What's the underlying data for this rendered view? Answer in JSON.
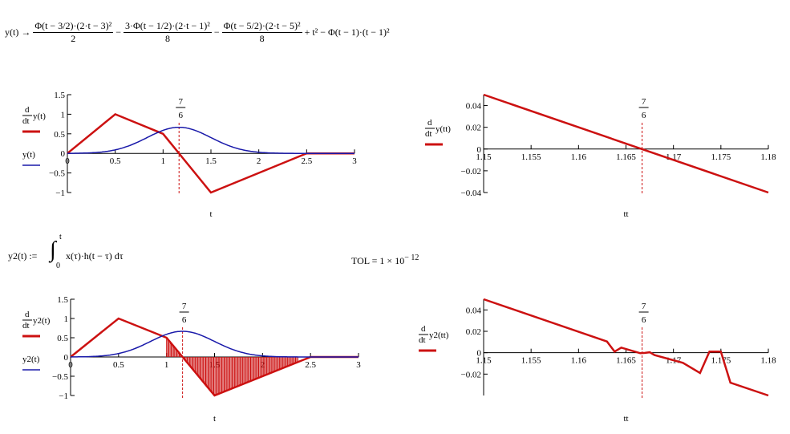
{
  "eq1": {
    "lhs": "y(t)",
    "arrow": "→",
    "term1_num": "Φ(t − 3/2)·(2·t − 3)²",
    "term1_den": "2",
    "minus1": "−",
    "term2_num": "3·Φ(t − 1/2)·(2·t − 1)²",
    "term2_den": "8",
    "minus2": "−",
    "term3_num": "Φ(t − 5/2)·(2·t − 5)²",
    "term3_den": "8",
    "tail": "+ t² − Φ(t − 1)·(t − 1)²"
  },
  "eq2": {
    "lhs": "y2(t) :=",
    "upper": "t",
    "lower": "0",
    "integrand": "x(τ)·h(t − τ) dτ"
  },
  "tol": {
    "label": "TOL = 1 × 10",
    "exp": "− 12"
  },
  "colors": {
    "red": "#cc1111",
    "blue": "#1a1aaa",
    "axis": "#000000"
  },
  "marker": {
    "num": "7",
    "den": "6"
  },
  "chart_data": [
    {
      "id": "plot1",
      "type": "line",
      "xlabel": "t",
      "xlim": [
        0,
        3
      ],
      "ylim": [
        -1,
        1.5
      ],
      "xticks": [
        "0",
        "0.5",
        "1",
        "1.5",
        "2",
        "2.5",
        "3"
      ],
      "yticks": [
        "1.5",
        "1",
        "0.5",
        "0",
        "−0.5",
        "−1"
      ],
      "legend": [
        {
          "name": "d/dt y(t)",
          "color": "#cc1111"
        },
        {
          "name": "y(t)",
          "color": "#1a1aaa"
        }
      ],
      "series": [
        {
          "name": "d/dt y(t)",
          "kind": "piecewise",
          "x": [
            0,
            0.5,
            1.0,
            1.5,
            2.5,
            3.0
          ],
          "y": [
            0,
            1.0,
            0.5,
            -1.0,
            0,
            0
          ]
        },
        {
          "name": "y(t)",
          "kind": "smooth_bump"
        }
      ],
      "marker_x": 1.1667
    },
    {
      "id": "plot2",
      "type": "line",
      "xlabel": "tt",
      "xlim": [
        1.15,
        1.18
      ],
      "ylim": [
        -0.04,
        0.05
      ],
      "xticks": [
        "1.15",
        "1.155",
        "1.16",
        "1.165",
        "1.17",
        "1.175",
        "1.18"
      ],
      "yticks": [
        "0.04",
        "0.02",
        "0",
        "−0.02",
        "−0.04"
      ],
      "legend": [
        {
          "name": "d/dt y(tt)",
          "color": "#cc1111"
        }
      ],
      "series": [
        {
          "name": "d/dt y(tt)",
          "x": [
            1.15,
            1.18
          ],
          "y": [
            0.05,
            -0.04
          ]
        }
      ],
      "marker_x": 1.1667
    },
    {
      "id": "plot3",
      "type": "line",
      "xlabel": "t",
      "xlim": [
        0,
        3
      ],
      "ylim": [
        -1,
        1.5
      ],
      "xticks": [
        "0",
        "0.5",
        "1",
        "1.5",
        "2",
        "2.5",
        "3"
      ],
      "yticks": [
        "1.5",
        "1",
        "0.5",
        "0",
        "−0.5",
        "−1"
      ],
      "legend": [
        {
          "name": "d/dt y2(t)",
          "color": "#cc1111"
        },
        {
          "name": "y2(t)",
          "color": "#1a1aaa"
        }
      ],
      "series": [
        {
          "name": "d/dt y2(t)",
          "kind": "piecewise_noisy",
          "x": [
            0,
            0.5,
            1.0,
            1.5,
            2.5,
            3.0
          ],
          "y": [
            0,
            1.0,
            0.5,
            -1.0,
            0,
            0
          ]
        },
        {
          "name": "y2(t)",
          "kind": "smooth_bump"
        }
      ],
      "marker_x": 1.1667
    },
    {
      "id": "plot4",
      "type": "line",
      "xlabel": "tt",
      "xlim": [
        1.15,
        1.18
      ],
      "ylim": [
        -0.04,
        0.05
      ],
      "xticks": [
        "1.15",
        "1.155",
        "1.16",
        "1.165",
        "1.17",
        "1.175",
        "1.18"
      ],
      "yticks": [
        "0.04",
        "0.02",
        "0",
        "−0.02"
      ],
      "legend": [
        {
          "name": "d/dt y2(tt)",
          "color": "#cc1111"
        }
      ],
      "series": [
        {
          "name": "d/dt y2(tt)",
          "x": [
            1.15,
            1.163,
            1.1638,
            1.1645,
            1.1665,
            1.167,
            1.1675,
            1.168,
            1.171,
            1.1728,
            1.1738,
            1.175,
            1.176,
            1.18
          ],
          "y": [
            0.05,
            0.0105,
            0.001,
            0.0048,
            -0.0005,
            -0.0002,
            0.0004,
            -0.0022,
            -0.0095,
            -0.019,
            0.001,
            0.001,
            -0.028,
            -0.04
          ]
        }
      ],
      "marker_x": 1.1667
    }
  ]
}
